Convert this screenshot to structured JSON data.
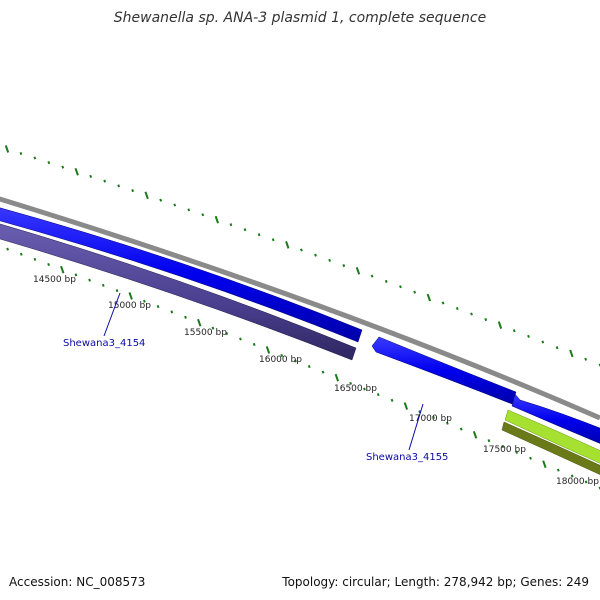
{
  "map": {
    "title": "Shewanella sp. ANA-3 plasmid 1, complete sequence",
    "bp_labels": [
      "14500 bp",
      "15000 bp",
      "15500 bp",
      "16000 bp",
      "16500 bp",
      "17000 bp",
      "17500 bp",
      "18000 bp"
    ],
    "genes": [
      {
        "name": "Shewana3_4154"
      },
      {
        "name": "Shewana3_4155"
      }
    ],
    "colors": {
      "backbone": "#8a8a8a",
      "forward_cds": "#0000ee",
      "reverse_cds": "#4a3f8f",
      "green_feature": "#8fd01c",
      "olive_feature": "#6b7a18",
      "ticks": "#1a7a1a",
      "gene_label": "#0a0aa6"
    }
  },
  "footer": {
    "accession": "Accession: NC_008573",
    "summary": "Topology: circular; Length: 278,942 bp; Genes: 249"
  }
}
